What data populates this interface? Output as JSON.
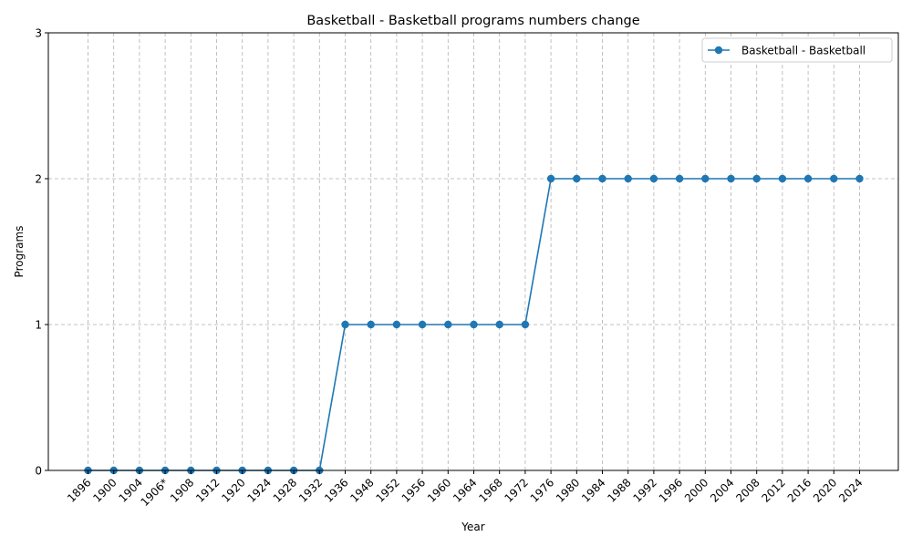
{
  "chart_data": {
    "type": "line",
    "title": "Basketball - Basketball programs numbers change",
    "xlabel": "Year",
    "ylabel": "Programs",
    "categories": [
      "1896",
      "1900",
      "1904",
      "1906*",
      "1908",
      "1912",
      "1920",
      "1924",
      "1928",
      "1932",
      "1936",
      "1948",
      "1952",
      "1956",
      "1960",
      "1964",
      "1968",
      "1972",
      "1976",
      "1980",
      "1984",
      "1988",
      "1992",
      "1996",
      "2000",
      "2004",
      "2008",
      "2012",
      "2016",
      "2020",
      "2024"
    ],
    "series": [
      {
        "name": "Basketball - Basketball",
        "color": "#1f77b4",
        "values": [
          0,
          0,
          0,
          0,
          0,
          0,
          0,
          0,
          0,
          0,
          1,
          1,
          1,
          1,
          1,
          1,
          1,
          1,
          2,
          2,
          2,
          2,
          2,
          2,
          2,
          2,
          2,
          2,
          2,
          2,
          2
        ]
      }
    ],
    "ylim": [
      0,
      3
    ],
    "yticks": [
      0,
      1,
      2,
      3
    ],
    "grid": true,
    "legend": "top-right"
  }
}
